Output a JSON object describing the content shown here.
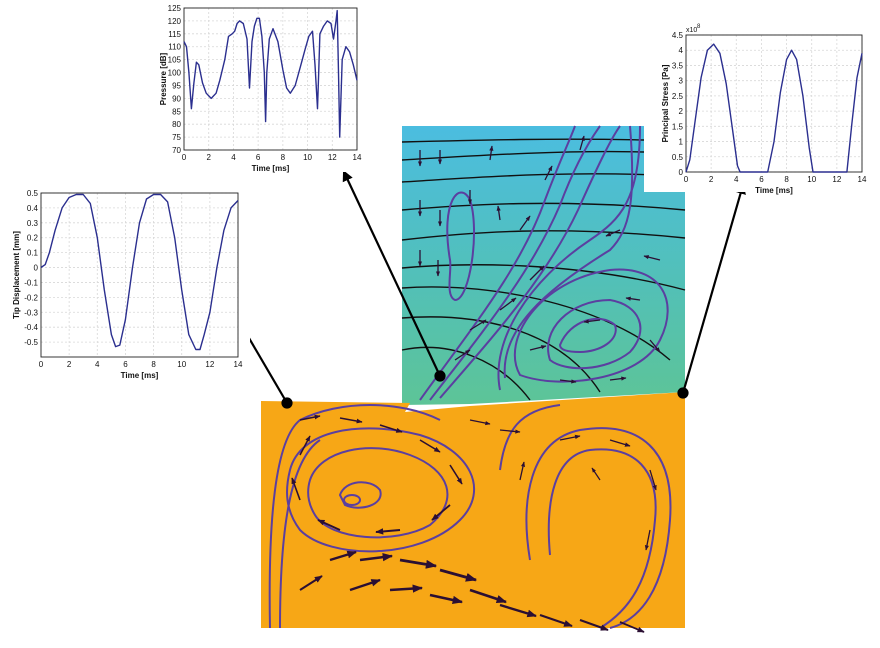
{
  "colors": {
    "series": "#2b2f8f",
    "grid": "#d8d8d8",
    "pointer": "#000000",
    "fluid_top": "#4dc0d6",
    "fluid_bottom": "#55c09a",
    "fluid_lower": "#f5a412",
    "streamline": "#5b3fa0",
    "vector": "#2b0f33",
    "isoline": "#111111"
  },
  "chart_data": [
    {
      "type": "line",
      "id": "pressure",
      "xlabel": "Time [ms]",
      "ylabel": "Pressure [dB]",
      "xlim": [
        0,
        14
      ],
      "ylim": [
        70,
        125
      ],
      "xticks": [
        "0",
        "2",
        "4",
        "6",
        "8",
        "10",
        "12",
        "14"
      ],
      "yticks": [
        "70",
        "75",
        "80",
        "85",
        "90",
        "95",
        "100",
        "105",
        "110",
        "115",
        "120",
        "125"
      ],
      "grid": true,
      "x": [
        0,
        0.2,
        0.4,
        0.6,
        0.8,
        1.0,
        1.2,
        1.5,
        1.8,
        2.2,
        2.6,
        2.9,
        3.3,
        3.6,
        3.9,
        4.1,
        4.3,
        4.5,
        4.8,
        5.1,
        5.3,
        5.5,
        5.7,
        5.9,
        6.1,
        6.3,
        6.5,
        6.6,
        6.7,
        6.9,
        7.2,
        7.6,
        8.0,
        8.3,
        8.6,
        9.0,
        9.4,
        9.8,
        10.1,
        10.4,
        10.6,
        10.8,
        10.9,
        11.0,
        11.3,
        11.6,
        11.9,
        12.1,
        12.3,
        12.4,
        12.5,
        12.6,
        12.8,
        13.1,
        13.4,
        13.7,
        14.0
      ],
      "values": [
        112,
        110,
        100,
        86,
        96,
        104,
        103,
        96,
        92,
        90,
        92,
        97,
        105,
        114,
        115,
        116,
        119,
        120,
        119,
        113,
        94,
        112,
        118,
        121,
        121,
        114,
        100,
        81,
        100,
        113,
        117,
        112,
        101,
        94,
        92,
        95,
        102,
        109,
        114,
        116,
        103,
        86,
        100,
        115,
        118,
        120,
        119,
        113,
        120,
        124,
        100,
        75,
        105,
        110,
        108,
        103,
        97
      ]
    },
    {
      "type": "line",
      "id": "tip_displacement",
      "xlabel": "Time [ms]",
      "ylabel": "Tip Displacement [mm]",
      "xlim": [
        0,
        14
      ],
      "ylim": [
        -0.6,
        0.5
      ],
      "xticks": [
        "0",
        "2",
        "4",
        "6",
        "8",
        "10",
        "12",
        "14"
      ],
      "yticks": [
        "-0.5",
        "-0.4",
        "-0.3",
        "-0.2",
        "-0.1",
        "0",
        "0.1",
        "0.2",
        "0.3",
        "0.4",
        "0.5"
      ],
      "grid": true,
      "x": [
        0,
        0.3,
        0.6,
        1.0,
        1.5,
        2.0,
        2.5,
        3.0,
        3.5,
        4.0,
        4.5,
        5.0,
        5.3,
        5.6,
        6.0,
        6.5,
        7.0,
        7.5,
        8.0,
        8.5,
        9.0,
        9.5,
        10.0,
        10.5,
        11.0,
        11.3,
        11.6,
        12.0,
        12.5,
        13.0,
        13.5,
        14.0
      ],
      "values": [
        0.0,
        0.02,
        0.1,
        0.25,
        0.4,
        0.47,
        0.49,
        0.49,
        0.43,
        0.2,
        -0.15,
        -0.45,
        -0.53,
        -0.52,
        -0.35,
        0.0,
        0.3,
        0.46,
        0.49,
        0.49,
        0.44,
        0.2,
        -0.15,
        -0.45,
        -0.55,
        -0.55,
        -0.45,
        -0.3,
        0.0,
        0.25,
        0.4,
        0.45
      ]
    },
    {
      "type": "line",
      "id": "principal_stress",
      "xlabel": "Time [ms]",
      "ylabel": "Principal Stress [Pa]",
      "exponent_label": "x10",
      "exponent_value": "8",
      "xlim": [
        0,
        14
      ],
      "ylim": [
        0,
        4.5
      ],
      "xticks": [
        "0",
        "2",
        "4",
        "6",
        "8",
        "10",
        "12",
        "14"
      ],
      "yticks": [
        "0",
        "0.5",
        "1",
        "1.5",
        "2",
        "2.5",
        "3",
        "3.5",
        "4",
        "4.5"
      ],
      "grid": true,
      "x": [
        0,
        0.3,
        0.7,
        1.2,
        1.7,
        2.2,
        2.7,
        3.2,
        3.7,
        4.1,
        4.3,
        5.0,
        6.0,
        6.5,
        7.0,
        7.5,
        8.0,
        8.4,
        8.8,
        9.3,
        9.8,
        10.1,
        10.5,
        11.5,
        12.5,
        12.8,
        13.2,
        13.6,
        14.0
      ],
      "values": [
        0,
        0.4,
        1.6,
        3.1,
        4.0,
        4.2,
        3.9,
        2.9,
        1.4,
        0.2,
        0,
        0,
        0,
        0,
        1.0,
        2.6,
        3.7,
        4.0,
        3.7,
        2.5,
        0.8,
        0,
        0,
        0,
        0,
        0,
        1.6,
        3.1,
        3.9
      ]
    }
  ]
}
